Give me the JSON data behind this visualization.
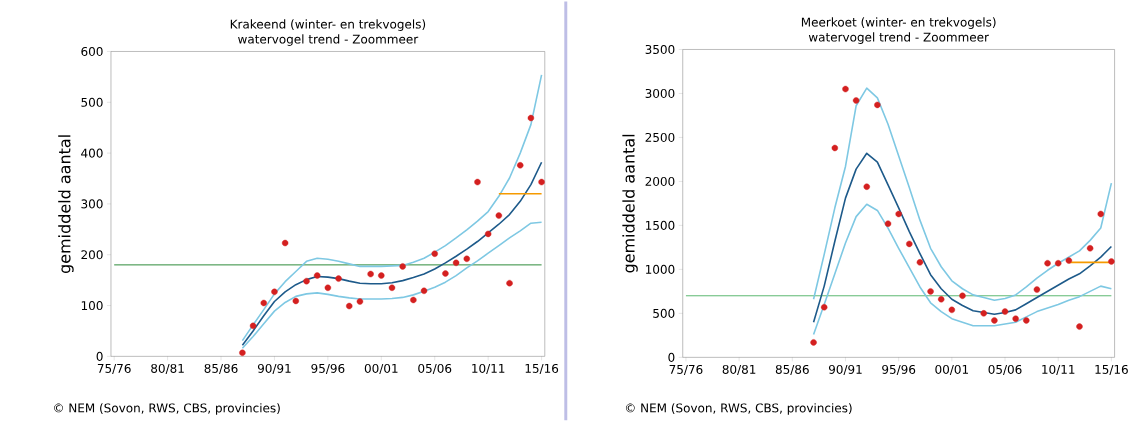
{
  "chart_data": [
    {
      "type": "scatter",
      "title": "Krakeend (winter- en trekvogels)",
      "subtitle": "watervogel trend - Zoommeer",
      "ylabel": "gemiddeld aantal",
      "annotations": [
        "© NEM (Sovon, RWS, CBS, provincies)"
      ],
      "categories": [
        "75/76",
        null,
        null,
        null,
        null,
        "80/81",
        null,
        null,
        null,
        null,
        "85/86",
        null,
        null,
        null,
        null,
        "90/91",
        null,
        null,
        null,
        null,
        "95/96",
        null,
        null,
        null,
        null,
        "00/01",
        null,
        null,
        null,
        null,
        "05/06",
        null,
        null,
        null,
        null,
        "10/11",
        null,
        null,
        null,
        null,
        "15/16"
      ],
      "ylim": [
        0,
        600
      ],
      "yticks": [
        0,
        100,
        200,
        300,
        400,
        500,
        600
      ],
      "ref_lines": [
        {
          "axis": "y",
          "value": 180,
          "color": "#2e8b3a"
        }
      ],
      "series": [
        {
          "type": "line",
          "color": "#7ec8e3",
          "values": [
            null,
            null,
            null,
            null,
            null,
            null,
            null,
            null,
            null,
            null,
            null,
            null,
            31,
            62,
            92,
            123,
            147,
            167,
            187,
            193,
            191,
            187,
            182,
            177,
            177,
            177,
            178,
            179,
            185,
            193,
            205,
            218,
            233,
            249,
            266,
            285,
            315,
            351,
            400,
            456,
            554
          ]
        },
        {
          "type": "line",
          "color": "#7ec8e3",
          "values": [
            null,
            null,
            null,
            null,
            null,
            null,
            null,
            null,
            null,
            null,
            null,
            null,
            16,
            39,
            64,
            89,
            106,
            118,
            123,
            125,
            122,
            118,
            115,
            113,
            113,
            113,
            114,
            116,
            121,
            128,
            136,
            146,
            159,
            174,
            188,
            203,
            218,
            233,
            247,
            262,
            264
          ]
        },
        {
          "type": "line",
          "color": "#1d5a8a",
          "values": [
            null,
            null,
            null,
            null,
            null,
            null,
            null,
            null,
            null,
            null,
            null,
            null,
            22,
            50,
            80,
            108,
            127,
            141,
            151,
            157,
            156,
            153,
            148,
            144,
            143,
            143,
            145,
            149,
            155,
            162,
            172,
            184,
            197,
            211,
            226,
            243,
            260,
            279,
            305,
            338,
            382
          ]
        },
        {
          "type": "line",
          "color": "#f59a00",
          "values": [
            null,
            null,
            null,
            null,
            null,
            null,
            null,
            null,
            null,
            null,
            null,
            null,
            null,
            null,
            null,
            null,
            null,
            null,
            null,
            null,
            null,
            null,
            null,
            null,
            null,
            null,
            null,
            null,
            null,
            null,
            null,
            null,
            null,
            null,
            null,
            null,
            320,
            320,
            320,
            320,
            320
          ]
        },
        {
          "marker": "circle",
          "color": "#d42020",
          "values": [
            null,
            null,
            null,
            null,
            null,
            null,
            null,
            null,
            null,
            null,
            null,
            null,
            7,
            60,
            105,
            127,
            223,
            109,
            148,
            159,
            135,
            153,
            99,
            108,
            162,
            159,
            135,
            177,
            111,
            129,
            202,
            163,
            184,
            192,
            343,
            241,
            277,
            144,
            376,
            469,
            343
          ]
        }
      ]
    },
    {
      "type": "scatter",
      "title": "Meerkoet (winter- en trekvogels)",
      "subtitle": "watervogel trend - Zoommeer",
      "ylabel": "gemiddeld aantal",
      "annotations": [
        "© NEM (Sovon, RWS, CBS, provincies)"
      ],
      "categories": [
        "75/76",
        null,
        null,
        null,
        null,
        "80/81",
        null,
        null,
        null,
        null,
        "85/86",
        null,
        null,
        null,
        null,
        "90/91",
        null,
        null,
        null,
        null,
        "95/96",
        null,
        null,
        null,
        null,
        "00/01",
        null,
        null,
        null,
        null,
        "05/06",
        null,
        null,
        null,
        null,
        "10/11",
        null,
        null,
        null,
        null,
        "15/16"
      ],
      "ylim": [
        0,
        3500
      ],
      "yticks": [
        0,
        500,
        1000,
        1500,
        2000,
        2500,
        3000,
        3500
      ],
      "ref_lines": [
        {
          "axis": "y",
          "value": 700,
          "color": "#5cb870"
        }
      ],
      "series": [
        {
          "type": "line",
          "color": "#7ec8e3",
          "values": [
            null,
            null,
            null,
            null,
            null,
            null,
            null,
            null,
            null,
            null,
            null,
            null,
            660,
            1170,
            1700,
            2170,
            2860,
            3060,
            2950,
            2650,
            2290,
            1930,
            1560,
            1240,
            1030,
            870,
            780,
            710,
            680,
            650,
            670,
            710,
            800,
            900,
            990,
            1070,
            1140,
            1210,
            1330,
            1470,
            1980
          ]
        },
        {
          "type": "line",
          "color": "#7ec8e3",
          "values": [
            null,
            null,
            null,
            null,
            null,
            null,
            null,
            null,
            null,
            null,
            null,
            null,
            260,
            600,
            950,
            1300,
            1600,
            1740,
            1670,
            1470,
            1240,
            1020,
            800,
            620,
            520,
            440,
            400,
            360,
            360,
            360,
            380,
            400,
            460,
            520,
            560,
            600,
            650,
            690,
            750,
            810,
            780
          ]
        },
        {
          "type": "line",
          "color": "#1d5a8a",
          "values": [
            null,
            null,
            null,
            null,
            null,
            null,
            null,
            null,
            null,
            null,
            null,
            null,
            400,
            810,
            1320,
            1810,
            2140,
            2320,
            2220,
            1960,
            1700,
            1430,
            1180,
            940,
            780,
            660,
            590,
            530,
            510,
            490,
            510,
            540,
            610,
            680,
            750,
            820,
            890,
            950,
            1040,
            1140,
            1260
          ]
        },
        {
          "type": "line",
          "color": "#f59a00",
          "values": [
            null,
            null,
            null,
            null,
            null,
            null,
            null,
            null,
            null,
            null,
            null,
            null,
            null,
            null,
            null,
            null,
            null,
            null,
            null,
            null,
            null,
            null,
            null,
            null,
            null,
            null,
            null,
            null,
            null,
            null,
            null,
            null,
            null,
            null,
            null,
            null,
            1080,
            1080,
            1080,
            1080,
            1080
          ]
        },
        {
          "marker": "circle",
          "color": "#d42020",
          "values": [
            null,
            null,
            null,
            null,
            null,
            null,
            null,
            null,
            null,
            null,
            null,
            null,
            170,
            570,
            2380,
            3050,
            2920,
            1940,
            2870,
            1520,
            1630,
            1290,
            1080,
            750,
            660,
            540,
            700,
            null,
            500,
            420,
            520,
            440,
            420,
            770,
            1070,
            1070,
            1100,
            350,
            1240,
            1630,
            1090
          ]
        }
      ]
    }
  ]
}
